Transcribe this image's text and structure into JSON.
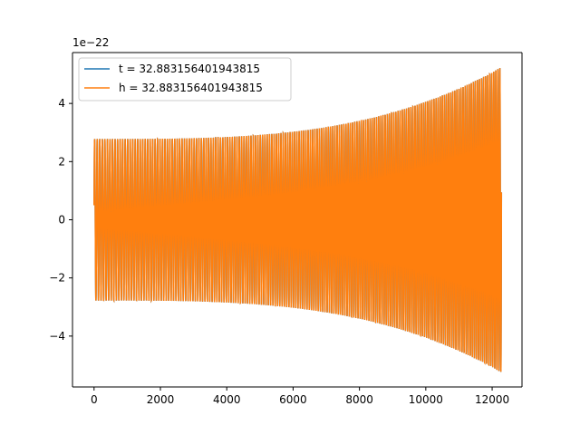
{
  "chart_data": {
    "type": "line",
    "offset_label": "1e−22",
    "xlim": [
      -650,
      12900
    ],
    "ylim": [
      -5.75,
      5.75
    ],
    "x_ticks": [
      0,
      2000,
      4000,
      6000,
      8000,
      10000,
      12000
    ],
    "x_tick_labels": [
      "0",
      "2000",
      "4000",
      "6000",
      "8000",
      "10000",
      "12000"
    ],
    "y_ticks": [
      -4,
      -2,
      0,
      2,
      4
    ],
    "y_tick_labels": [
      "−4",
      "−2",
      "0",
      "2",
      "4"
    ],
    "grid": false,
    "legend_position": "upper-left",
    "series": [
      {
        "name": "t = 32.883156401943815",
        "color": "#1f77b4",
        "x_range": [
          0,
          12280
        ],
        "initial_value": 0.5,
        "start_amplitude": 2.78,
        "end_amplitude": 5.25,
        "cycles": 180
      },
      {
        "name": "h = 32.883156401943815",
        "color": "#ff7f0e",
        "x_range": [
          0,
          12280
        ],
        "initial_value": 0.5,
        "start_amplitude": 2.78,
        "end_amplitude": 5.25,
        "cycles": 180
      }
    ]
  }
}
